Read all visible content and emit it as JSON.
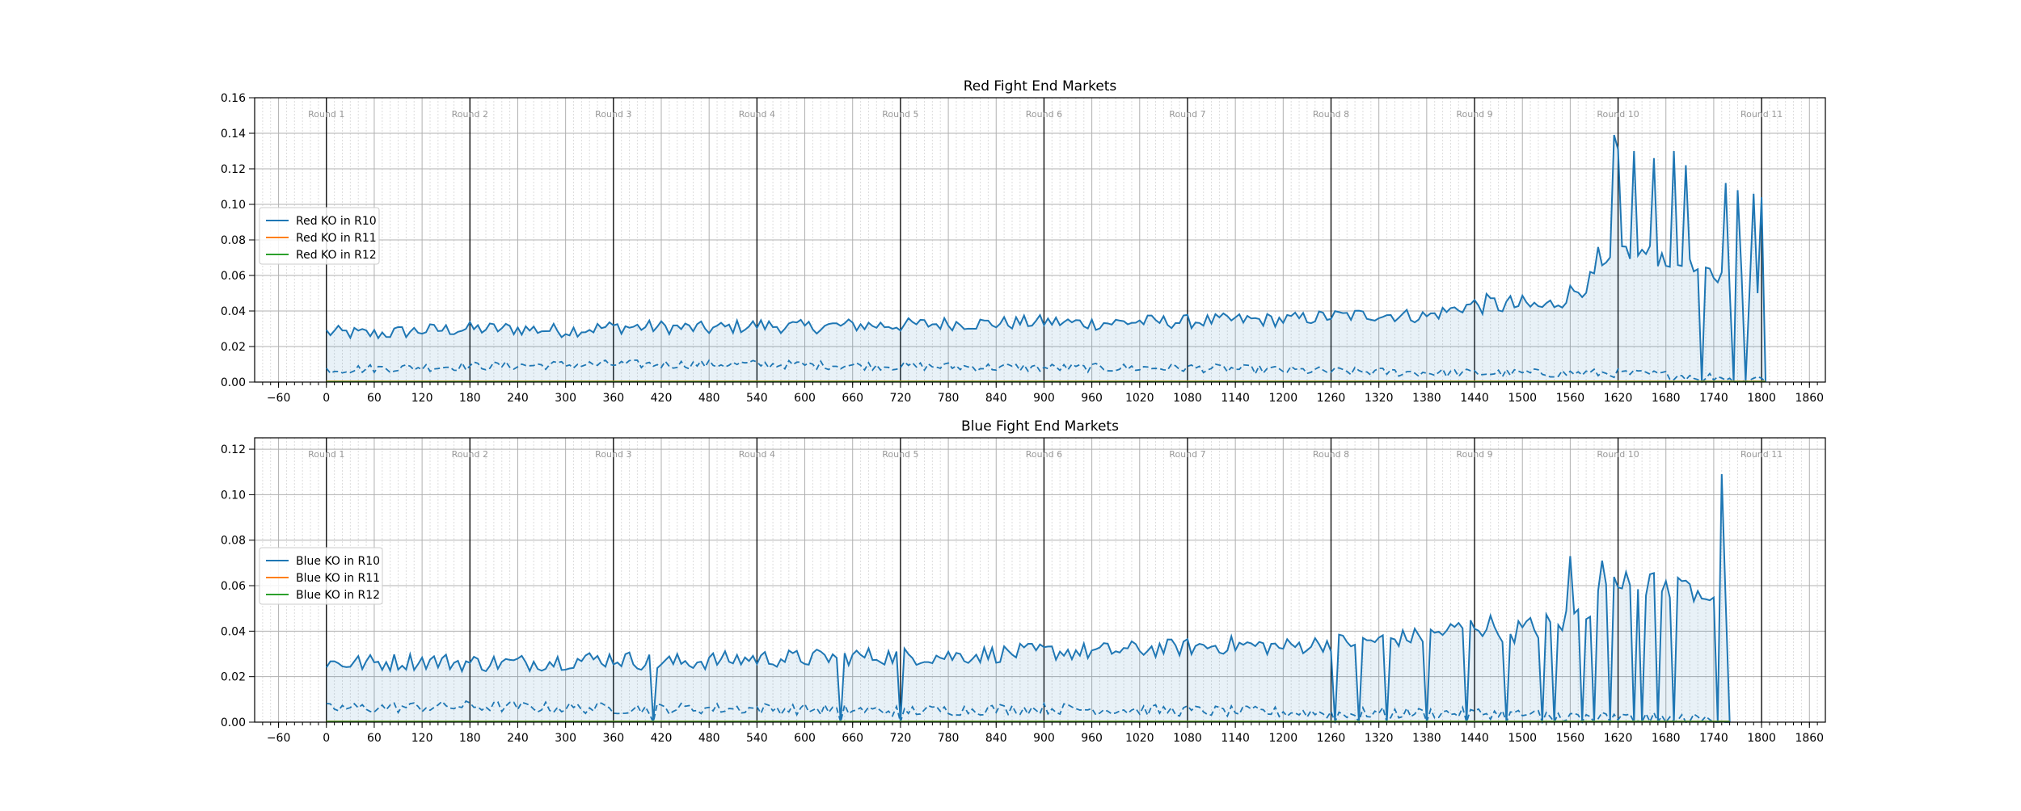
{
  "chart_data": [
    {
      "type": "line",
      "title": "Red Fight End Markets",
      "xlabel": "",
      "ylabel": "",
      "xlim": [
        -90,
        1880
      ],
      "ylim": [
        0,
        0.16
      ],
      "xticks": [
        "-60",
        "0",
        "60",
        "120",
        "180",
        "240",
        "300",
        "360",
        "420",
        "480",
        "540",
        "600",
        "660",
        "720",
        "780",
        "840",
        "900",
        "960",
        "1020",
        "1080",
        "1140",
        "1200",
        "1260",
        "1320",
        "1380",
        "1440",
        "1500",
        "1560",
        "1620",
        "1680",
        "1740",
        "1800",
        "1860"
      ],
      "yticks": [
        "0.00",
        "0.02",
        "0.04",
        "0.06",
        "0.08",
        "0.10",
        "0.12",
        "0.14",
        "0.16"
      ],
      "grid": true,
      "legend_position": "center-left",
      "round_markers": [
        0,
        180,
        360,
        540,
        720,
        900,
        1080,
        1260,
        1440,
        1620,
        1800
      ],
      "round_labels": [
        "Round 1",
        "Round 2",
        "Round 3",
        "Round 4",
        "Round 5",
        "Round 6",
        "Round 7",
        "Round 8",
        "Round 9",
        "Round 10",
        "Round 11"
      ],
      "series": [
        {
          "name": "Red KO in R10",
          "color": "#1f77b4",
          "keypoints": [
            [
              0,
              0.028
            ],
            [
              60,
              0.027
            ],
            [
              120,
              0.029
            ],
            [
              180,
              0.03
            ],
            [
              240,
              0.03
            ],
            [
              300,
              0.029
            ],
            [
              360,
              0.031
            ],
            [
              420,
              0.031
            ],
            [
              480,
              0.03
            ],
            [
              540,
              0.032
            ],
            [
              600,
              0.031
            ],
            [
              660,
              0.032
            ],
            [
              720,
              0.032
            ],
            [
              780,
              0.033
            ],
            [
              840,
              0.033
            ],
            [
              900,
              0.034
            ],
            [
              960,
              0.033
            ],
            [
              1020,
              0.034
            ],
            [
              1080,
              0.034
            ],
            [
              1140,
              0.035
            ],
            [
              1200,
              0.035
            ],
            [
              1260,
              0.037
            ],
            [
              1320,
              0.038
            ],
            [
              1380,
              0.037
            ],
            [
              1440,
              0.044
            ],
            [
              1500,
              0.043
            ],
            [
              1530,
              0.042
            ],
            [
              1560,
              0.05
            ],
            [
              1600,
              0.06
            ],
            [
              1620,
              0.075
            ],
            [
              1680,
              0.07
            ],
            [
              1720,
              0.062
            ],
            [
              1740,
              0.06
            ],
            [
              1760,
              0.058
            ],
            [
              1780,
              0.055
            ]
          ],
          "spikes": [
            [
              1594,
              0.076
            ],
            [
              1616,
              0.139
            ],
            [
              1622,
              0.131
            ],
            [
              1640,
              0.13
            ],
            [
              1665,
              0.126
            ],
            [
              1690,
              0.13
            ],
            [
              1705,
              0.122
            ],
            [
              1755,
              0.112
            ],
            [
              1770,
              0.108
            ],
            [
              1790,
              0.106
            ],
            [
              1800,
              0.104
            ]
          ],
          "drops": [
            [
              1725,
              0.0
            ],
            [
              1765,
              0.0
            ],
            [
              1782,
              0.0
            ],
            [
              1803,
              0.0
            ]
          ],
          "end_x": 1805,
          "dashed_companion": {
            "keypoints": [
              [
                0,
                0.007
              ],
              [
                180,
                0.009
              ],
              [
                360,
                0.01
              ],
              [
                540,
                0.01
              ],
              [
                720,
                0.009
              ],
              [
                900,
                0.008
              ],
              [
                1080,
                0.008
              ],
              [
                1260,
                0.006
              ],
              [
                1440,
                0.005
              ],
              [
                1620,
                0.005
              ],
              [
                1800,
                0.002
              ]
            ],
            "end_x": 1805
          }
        },
        {
          "name": "Red KO in R11",
          "color": "#ff7f0e",
          "keypoints": [
            [
              0,
              0.0005
            ],
            [
              1805,
              0.0005
            ]
          ],
          "end_x": 1805
        },
        {
          "name": "Red KO in R12",
          "color": "#2ca02c",
          "keypoints": [
            [
              0,
              0.0003
            ],
            [
              1805,
              0.0003
            ]
          ],
          "end_x": 1805
        }
      ]
    },
    {
      "type": "line",
      "title": "Blue Fight End Markets",
      "xlabel": "",
      "ylabel": "",
      "xlim": [
        -90,
        1880
      ],
      "ylim": [
        0,
        0.125
      ],
      "xticks": [
        "-60",
        "0",
        "60",
        "120",
        "180",
        "240",
        "300",
        "360",
        "420",
        "480",
        "540",
        "600",
        "660",
        "720",
        "780",
        "840",
        "900",
        "960",
        "1020",
        "1080",
        "1140",
        "1200",
        "1260",
        "1320",
        "1380",
        "1440",
        "1500",
        "1560",
        "1620",
        "1680",
        "1740",
        "1800",
        "1860"
      ],
      "yticks": [
        "0.00",
        "0.02",
        "0.04",
        "0.06",
        "0.08",
        "0.10",
        "0.12"
      ],
      "grid": true,
      "legend_position": "center-left",
      "round_markers": [
        0,
        180,
        360,
        540,
        720,
        900,
        1080,
        1260,
        1440,
        1620,
        1800
      ],
      "round_labels": [
        "Round 1",
        "Round 2",
        "Round 3",
        "Round 4",
        "Round 5",
        "Round 6",
        "Round 7",
        "Round 8",
        "Round 9",
        "Round 10",
        "Round 11"
      ],
      "series": [
        {
          "name": "Blue KO in R10",
          "color": "#1f77b4",
          "keypoints": [
            [
              0,
              0.026
            ],
            [
              60,
              0.026
            ],
            [
              120,
              0.027
            ],
            [
              180,
              0.026
            ],
            [
              240,
              0.026
            ],
            [
              300,
              0.027
            ],
            [
              360,
              0.028
            ],
            [
              420,
              0.026
            ],
            [
              480,
              0.027
            ],
            [
              540,
              0.028
            ],
            [
              600,
              0.028
            ],
            [
              660,
              0.029
            ],
            [
              720,
              0.029
            ],
            [
              780,
              0.029
            ],
            [
              840,
              0.03
            ],
            [
              900,
              0.031
            ],
            [
              960,
              0.031
            ],
            [
              1020,
              0.032
            ],
            [
              1080,
              0.033
            ],
            [
              1140,
              0.034
            ],
            [
              1200,
              0.033
            ],
            [
              1260,
              0.035
            ],
            [
              1320,
              0.036
            ],
            [
              1380,
              0.038
            ],
            [
              1440,
              0.043
            ],
            [
              1500,
              0.04
            ],
            [
              1560,
              0.045
            ],
            [
              1620,
              0.06
            ],
            [
              1680,
              0.06
            ],
            [
              1720,
              0.058
            ],
            [
              1760,
              0.055
            ]
          ],
          "spikes": [
            [
              1562,
              0.073
            ],
            [
              1598,
              0.071
            ],
            [
              1628,
              0.066
            ],
            [
              1660,
              0.065
            ],
            [
              1700,
              0.062
            ],
            [
              1752,
              0.109
            ]
          ],
          "drops": [
            [
              410,
              0.0
            ],
            [
              645,
              0.0
            ],
            [
              722,
              0.0
            ],
            [
              1265,
              0.0
            ],
            [
              1295,
              0.0
            ],
            [
              1330,
              0.0
            ],
            [
              1380,
              0.0
            ],
            [
              1430,
              0.0
            ],
            [
              1480,
              0.0
            ],
            [
              1525,
              0.0
            ],
            [
              1540,
              0.0
            ],
            [
              1575,
              0.0
            ],
            [
              1592,
              0.0
            ],
            [
              1612,
              0.0
            ],
            [
              1638,
              0.0
            ],
            [
              1650,
              0.0
            ],
            [
              1672,
              0.0
            ],
            [
              1690,
              0.0
            ],
            [
              1745,
              0.0
            ],
            [
              1758,
              0.0
            ]
          ],
          "end_x": 1762,
          "dashed_companion": {
            "keypoints": [
              [
                0,
                0.006
              ],
              [
                180,
                0.007
              ],
              [
                360,
                0.006
              ],
              [
                540,
                0.006
              ],
              [
                720,
                0.005
              ],
              [
                900,
                0.006
              ],
              [
                1080,
                0.005
              ],
              [
                1260,
                0.004
              ],
              [
                1440,
                0.004
              ],
              [
                1620,
                0.002
              ],
              [
                1760,
                0.001
              ]
            ],
            "end_x": 1762
          }
        },
        {
          "name": "Blue KO in R11",
          "color": "#ff7f0e",
          "keypoints": [
            [
              0,
              0.0004
            ],
            [
              1762,
              0.0004
            ]
          ],
          "end_x": 1762
        },
        {
          "name": "Blue KO in R12",
          "color": "#2ca02c",
          "keypoints": [
            [
              0,
              0.0003
            ],
            [
              1762,
              0.0003
            ]
          ],
          "end_x": 1762
        }
      ]
    }
  ]
}
